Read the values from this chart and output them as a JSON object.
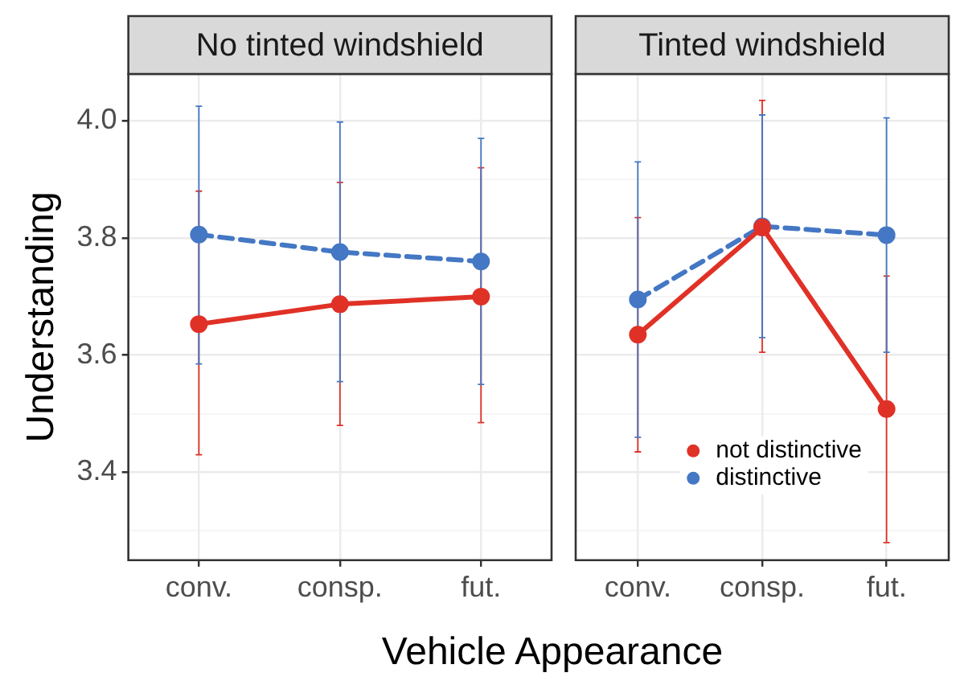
{
  "chart_data": [
    {
      "type": "line",
      "title": "No tinted windshield",
      "ylabel": "Understanding",
      "xlabel": "Vehicle Appearance",
      "categories": [
        "conv.",
        "consp.",
        "fut."
      ],
      "series": [
        {
          "color": "#e03127",
          "line_style": "solid",
          "values": [
            3.653,
            3.687,
            3.7
          ],
          "errors": [
            [
              3.43,
              3.88
            ],
            [
              3.48,
              3.895
            ],
            [
              3.485,
              3.92
            ]
          ]
        },
        {
          "color": "#4477c4",
          "line_style": "dashed",
          "values": [
            3.806,
            3.776,
            3.76
          ],
          "errors": [
            [
              3.585,
              4.025
            ],
            [
              3.555,
              3.998
            ],
            [
              3.55,
              3.97
            ]
          ]
        }
      ],
      "ylim": [
        3.25,
        4.08
      ],
      "yticks": [
        {
          "value": 3.3,
          "label": null
        },
        3.4,
        {
          "value": 3.5,
          "label": null
        },
        3.6,
        {
          "value": 3.7,
          "label": null
        },
        3.8,
        {
          "value": 3.9,
          "label": null
        },
        {
          "value": 4.0,
          "label": "4.0"
        }
      ],
      "grid": true,
      "marker": "circle",
      "legend": false
    },
    {
      "type": "line",
      "title": "Tinted windshield",
      "categories": [
        "conv.",
        "consp.",
        "fut."
      ],
      "series": [
        {
          "name": "not distinctive",
          "color": "#e03127",
          "line_style": "solid",
          "values": [
            3.635,
            3.818,
            3.508
          ],
          "errors": [
            [
              3.435,
              3.835
            ],
            [
              3.605,
              4.035
            ],
            [
              3.28,
              3.735
            ]
          ]
        },
        {
          "name": "distinctive",
          "color": "#4477c4",
          "line_style": "dashed",
          "values": [
            3.695,
            3.82,
            3.805
          ],
          "errors": [
            [
              3.46,
              3.93
            ],
            [
              3.63,
              4.01
            ],
            [
              3.605,
              4.005
            ]
          ]
        }
      ],
      "ylim": [
        3.25,
        4.08
      ],
      "yticks": [
        {
          "value": 3.3,
          "label": null
        },
        3.4,
        {
          "value": 3.5,
          "label": null
        },
        3.6,
        {
          "value": 3.7,
          "label": null
        },
        3.8,
        {
          "value": 3.9,
          "label": null
        },
        4
      ],
      "grid": true,
      "marker": "circle",
      "legend": "bottom right",
      "tick_labels": "x"
    }
  ]
}
